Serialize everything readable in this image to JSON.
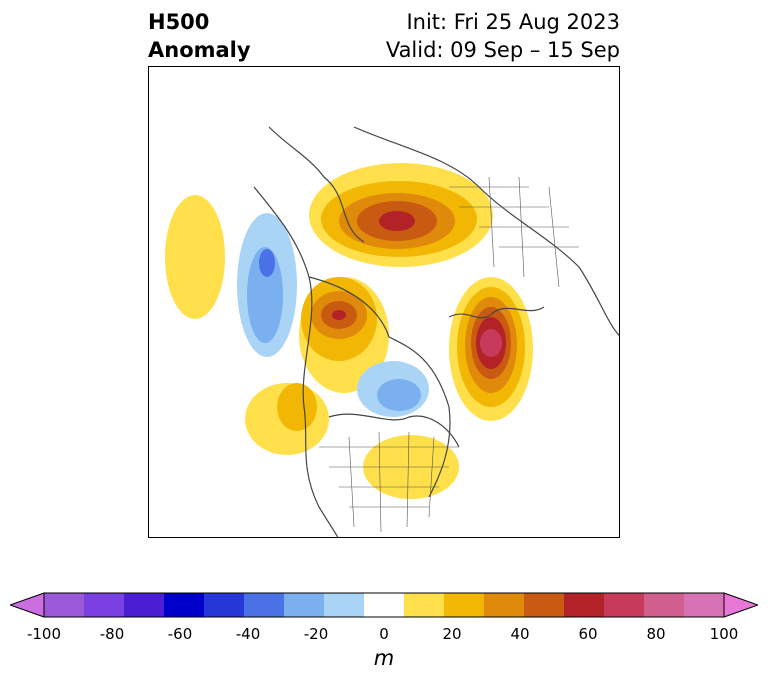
{
  "title": {
    "line1": "H500",
    "line2": "Anomaly"
  },
  "dates": {
    "init": "Init: Fri 25 Aug 2023",
    "valid": "Valid: 09 Sep – 15 Sep"
  },
  "colorbar": {
    "unit": "m",
    "ticks": [
      "-100",
      "-80",
      "-60",
      "-40",
      "-20",
      "0",
      "20",
      "40",
      "60",
      "80",
      "100"
    ],
    "colors": [
      "#9b59d9",
      "#7a3fe0",
      "#4a1fd4",
      "#0000c8",
      "#2438d8",
      "#4a72e6",
      "#7aaff0",
      "#a9d4f6",
      "#ffffff",
      "#ffe04a",
      "#f2b705",
      "#e08a0c",
      "#c85a12",
      "#b22226",
      "#c83a5c",
      "#d05e8e",
      "#d872b6"
    ],
    "extend_low": "#cc6ee0",
    "extend_high": "#e878d8"
  }
}
